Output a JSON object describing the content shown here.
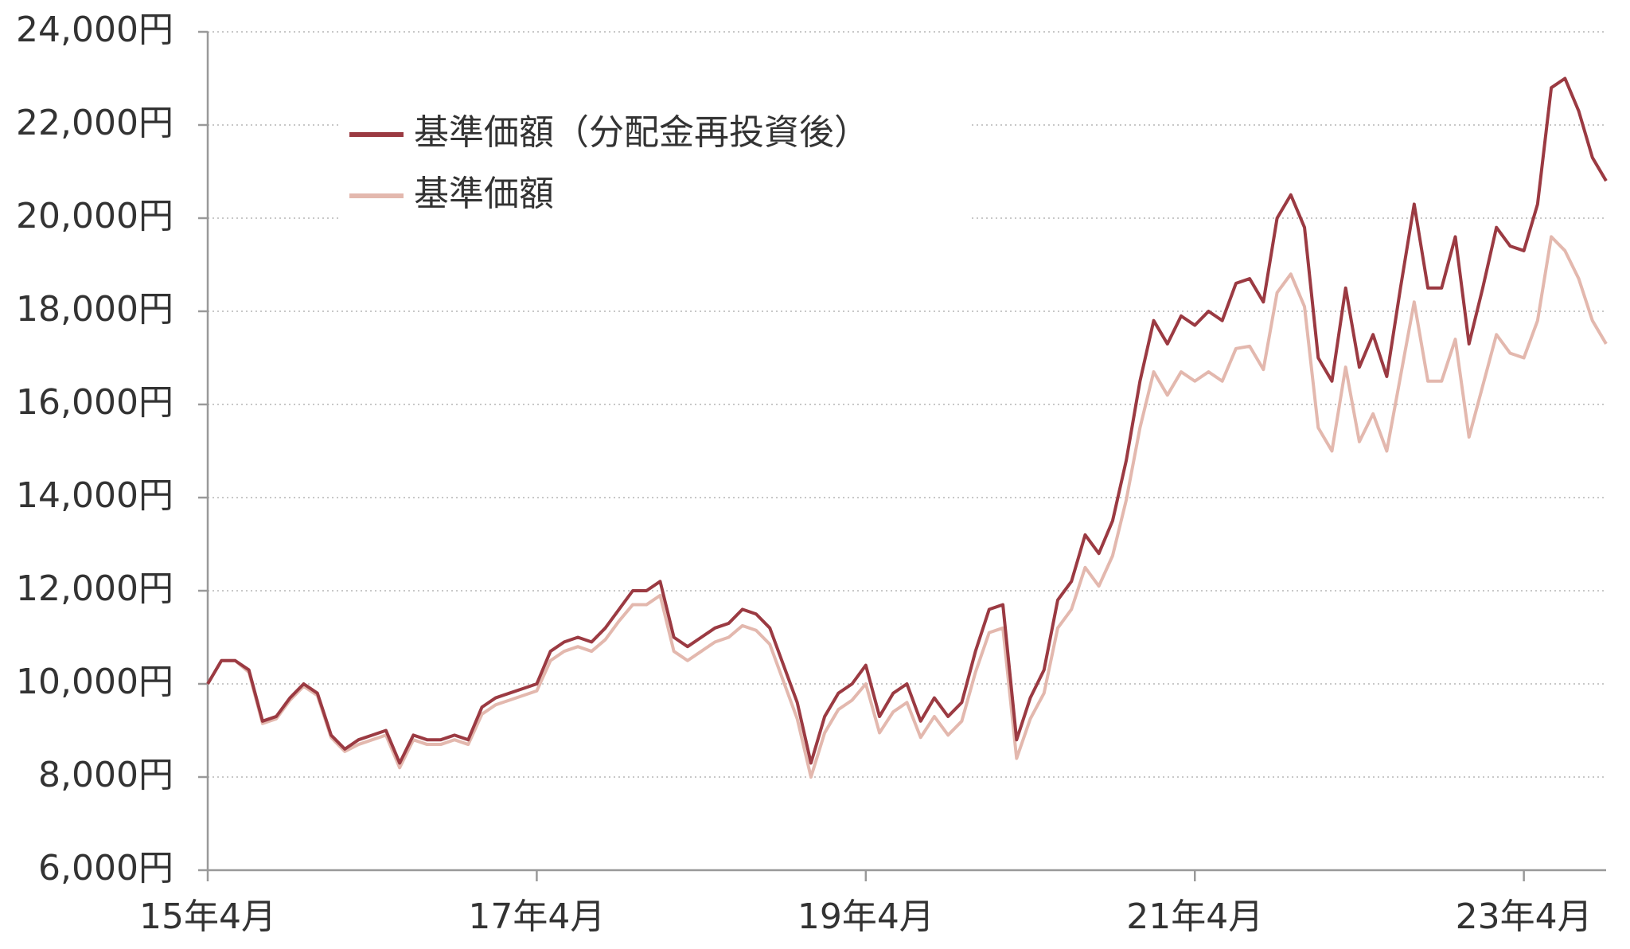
{
  "chart_data": {
    "type": "line",
    "categories": [
      "15年4月",
      null,
      null,
      null,
      null,
      null,
      null,
      null,
      null,
      null,
      null,
      null,
      null,
      null,
      null,
      null,
      null,
      null,
      null,
      null,
      null,
      null,
      null,
      null,
      "17年4月",
      null,
      null,
      null,
      null,
      null,
      null,
      null,
      null,
      null,
      null,
      null,
      null,
      null,
      null,
      null,
      null,
      null,
      null,
      null,
      null,
      null,
      null,
      null,
      "19年4月",
      null,
      null,
      null,
      null,
      null,
      null,
      null,
      null,
      null,
      null,
      null,
      null,
      null,
      null,
      null,
      null,
      null,
      null,
      null,
      null,
      null,
      null,
      null,
      "21年4月",
      null,
      null,
      null,
      null,
      null,
      null,
      null,
      null,
      null,
      null,
      null,
      null,
      null,
      null,
      null,
      null,
      null,
      null,
      null,
      null,
      null,
      null,
      null,
      "23年4月",
      null,
      null,
      null,
      null,
      null,
      null
    ],
    "series": [
      {
        "name": "基準価額（分配金再投資後）",
        "color": "#9b3a42",
        "values": [
          10000,
          10500,
          10500,
          10300,
          9200,
          9300,
          9700,
          10000,
          9800,
          8900,
          8600,
          8800,
          8900,
          9000,
          8300,
          8900,
          8800,
          8800,
          8900,
          8800,
          9500,
          9700,
          9800,
          9900,
          10000,
          10700,
          10900,
          11000,
          10900,
          11200,
          11600,
          12000,
          12000,
          12200,
          11000,
          10800,
          11000,
          11200,
          11300,
          11600,
          11500,
          11200,
          10400,
          9600,
          8300,
          9300,
          9800,
          10000,
          10400,
          9300,
          9800,
          10000,
          9200,
          9700,
          9300,
          9600,
          10700,
          11600,
          11700,
          8800,
          9700,
          10300,
          11800,
          12200,
          13200,
          12800,
          13500,
          14800,
          16500,
          17800,
          17300,
          17900,
          17700,
          18000,
          17800,
          18600,
          18700,
          18200,
          20000,
          20500,
          19800,
          17000,
          16500,
          18500,
          16800,
          17500,
          16600,
          18500,
          20300,
          18500,
          18500,
          19600,
          17300,
          18500,
          19800,
          19400,
          19300,
          20300,
          22800,
          23000,
          22300,
          21300,
          20800
        ]
      },
      {
        "name": "基準価額",
        "color": "#e3b8ae",
        "values": [
          10000,
          10500,
          10500,
          10250,
          9150,
          9250,
          9650,
          9950,
          9750,
          8850,
          8550,
          8700,
          8800,
          8900,
          8200,
          8800,
          8700,
          8700,
          8800,
          8700,
          9350,
          9550,
          9650,
          9750,
          9850,
          10500,
          10700,
          10800,
          10700,
          10950,
          11350,
          11700,
          11700,
          11900,
          10700,
          10500,
          10700,
          10900,
          11000,
          11250,
          11150,
          10850,
          10050,
          9250,
          8000,
          8950,
          9450,
          9650,
          10000,
          8950,
          9400,
          9600,
          8850,
          9300,
          8900,
          9200,
          10250,
          11100,
          11200,
          8400,
          9250,
          9800,
          11200,
          11600,
          12500,
          12100,
          12750,
          13950,
          15500,
          16700,
          16200,
          16700,
          16500,
          16700,
          16500,
          17200,
          17250,
          16750,
          18400,
          18800,
          18100,
          15500,
          15000,
          16800,
          15200,
          15800,
          15000,
          16600,
          18200,
          16500,
          16500,
          17400,
          15300,
          16400,
          17500,
          17100,
          17000,
          17800,
          19600,
          19300,
          18700,
          17800,
          17300
        ]
      }
    ],
    "ylim": [
      6000,
      24000
    ],
    "yticks": [
      {
        "value": 6000,
        "label": "6,000円"
      },
      {
        "value": 8000,
        "label": "8,000円"
      },
      {
        "value": 10000,
        "label": "10,000円"
      },
      {
        "value": 12000,
        "label": "12,000円"
      },
      {
        "value": 14000,
        "label": "14,000円"
      },
      {
        "value": 16000,
        "label": "16,000円"
      },
      {
        "value": 18000,
        "label": "18,000円"
      },
      {
        "value": 20000,
        "label": "20,000円"
      },
      {
        "value": 22000,
        "label": "22,000円"
      },
      {
        "value": 24000,
        "label": "24,000円"
      }
    ],
    "grid": true,
    "legend": "upper left"
  }
}
